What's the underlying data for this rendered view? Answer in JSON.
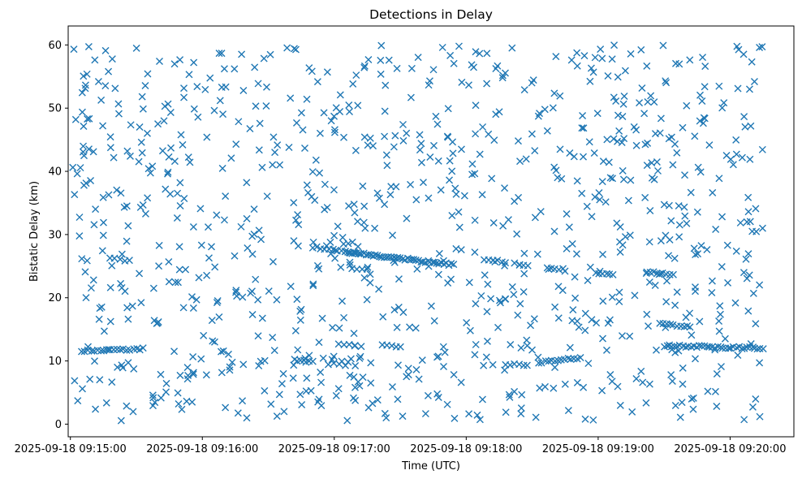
{
  "chart_data": {
    "type": "scatter",
    "title": "Detections in Delay",
    "xlabel": "Time (UTC)",
    "ylabel": "Bistatic Delay (km)",
    "marker": "x",
    "marker_color": "#1f77b4",
    "grid": false,
    "legend": null,
    "x_axis_type": "datetime",
    "xlim": [
      "2025-09-18 09:14:59",
      "2025-09-18 09:20:29"
    ],
    "ylim": [
      -2,
      63
    ],
    "x_ticks": [
      "2025-09-18 09:15:00",
      "2025-09-18 09:16:00",
      "2025-09-18 09:17:00",
      "2025-09-18 09:18:00",
      "2025-09-18 09:19:00",
      "2025-09-18 09:20:00"
    ],
    "y_ticks": [
      0,
      10,
      20,
      30,
      40,
      50,
      60
    ],
    "tracks": [
      {
        "x": [
          "2025-09-18 09:15:05",
          "2025-09-18 09:15:33"
        ],
        "y": [
          11.5,
          11.9
        ],
        "n": 20
      },
      {
        "x": [
          "2025-09-18 09:15:18",
          "2025-09-18 09:15:27"
        ],
        "y": [
          26.2,
          25.8
        ],
        "n": 5
      },
      {
        "x": [
          "2025-09-18 09:16:42",
          "2025-09-18 09:16:50"
        ],
        "y": [
          10.1,
          9.9
        ],
        "n": 7
      },
      {
        "x": [
          "2025-09-18 09:16:50",
          "2025-09-18 09:17:07"
        ],
        "y": [
          28.0,
          27.2
        ],
        "n": 10
      },
      {
        "x": [
          "2025-09-18 09:16:57",
          "2025-09-18 09:17:05"
        ],
        "y": [
          9.6,
          9.4
        ],
        "n": 4
      },
      {
        "x": [
          "2025-09-18 09:17:05",
          "2025-09-18 09:17:54"
        ],
        "y": [
          27.3,
          25.2
        ],
        "n": 48
      },
      {
        "x": [
          "2025-09-18 09:17:02",
          "2025-09-18 09:17:12"
        ],
        "y": [
          12.6,
          12.4
        ],
        "n": 5
      },
      {
        "x": [
          "2025-09-18 09:17:08",
          "2025-09-18 09:17:15"
        ],
        "y": [
          24.8,
          24.4
        ],
        "n": 4
      },
      {
        "x": [
          "2025-09-18 09:17:22",
          "2025-09-18 09:17:30"
        ],
        "y": [
          12.4,
          12.2
        ],
        "n": 5
      },
      {
        "x": [
          "2025-09-18 09:18:08",
          "2025-09-18 09:18:18"
        ],
        "y": [
          26.0,
          25.6
        ],
        "n": 6
      },
      {
        "x": [
          "2025-09-18 09:18:22",
          "2025-09-18 09:18:28"
        ],
        "y": [
          25.4,
          25.2
        ],
        "n": 4
      },
      {
        "x": [
          "2025-09-18 09:18:18",
          "2025-09-18 09:18:28"
        ],
        "y": [
          9.5,
          9.4
        ],
        "n": 6
      },
      {
        "x": [
          "2025-09-18 09:18:33",
          "2025-09-18 09:18:52"
        ],
        "y": [
          9.8,
          10.5
        ],
        "n": 14
      },
      {
        "x": [
          "2025-09-18 09:18:37",
          "2025-09-18 09:18:44"
        ],
        "y": [
          24.7,
          24.5
        ],
        "n": 5
      },
      {
        "x": [
          "2025-09-18 09:18:59",
          "2025-09-18 09:19:07"
        ],
        "y": [
          24.0,
          23.5
        ],
        "n": 6
      },
      {
        "x": [
          "2025-09-18 09:19:22",
          "2025-09-18 09:19:34"
        ],
        "y": [
          24.0,
          23.7
        ],
        "n": 9
      },
      {
        "x": [
          "2025-09-18 09:19:28",
          "2025-09-18 09:19:42"
        ],
        "y": [
          15.9,
          15.4
        ],
        "n": 10
      },
      {
        "x": [
          "2025-09-18 09:19:30",
          "2025-09-18 09:20:15"
        ],
        "y": [
          12.4,
          12.0
        ],
        "n": 38
      }
    ],
    "clutter": {
      "count": 950,
      "x_range": [
        "2025-09-18 09:15:01",
        "2025-09-18 09:20:15"
      ],
      "y_range": [
        0.5,
        60
      ],
      "distribution": "uniform random"
    }
  }
}
